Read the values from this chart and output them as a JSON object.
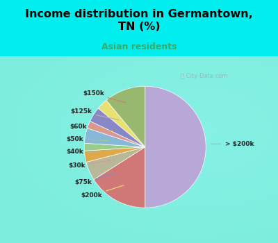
{
  "title": "Income distribution in Germantown,\nTN (%)",
  "subtitle": "Asian residents",
  "title_color": "#000000",
  "subtitle_color": "#3aaa6a",
  "bg_cyan": "#00eeee",
  "bg_chart": "#d5eedc",
  "watermark": "ⓘ City-Data.com",
  "slice_labels": [
    "> $200k",
    "$150k",
    "$125k",
    "$60k",
    "$50k",
    "$40k",
    "$30k",
    "$75k",
    "$200k"
  ],
  "slice_sizes": [
    50,
    16,
    5,
    3,
    2,
    4,
    2,
    4,
    3,
    11
  ],
  "slice_colors": [
    "#b8a8d8",
    "#d07878",
    "#b8b898",
    "#e0a848",
    "#98cc88",
    "#88b8d8",
    "#d89898",
    "#8888c8",
    "#e8e070",
    "#98b870"
  ],
  "extra_sizes": [
    11
  ],
  "extra_colors": [
    "#98b870"
  ],
  "all_labels": [
    "> $200k",
    "$150k",
    "$125k",
    "$60k",
    "$50k",
    "$40k",
    "$30k",
    "$75k",
    "$200k",
    ""
  ],
  "all_sizes": [
    50,
    16,
    5,
    3,
    2,
    4,
    2,
    4,
    3,
    11
  ],
  "all_colors": [
    "#b8a8d8",
    "#d07878",
    "#b8b898",
    "#e0a848",
    "#98cc88",
    "#88b8d8",
    "#d89898",
    "#8888c8",
    "#e8e070",
    "#98b870"
  ]
}
